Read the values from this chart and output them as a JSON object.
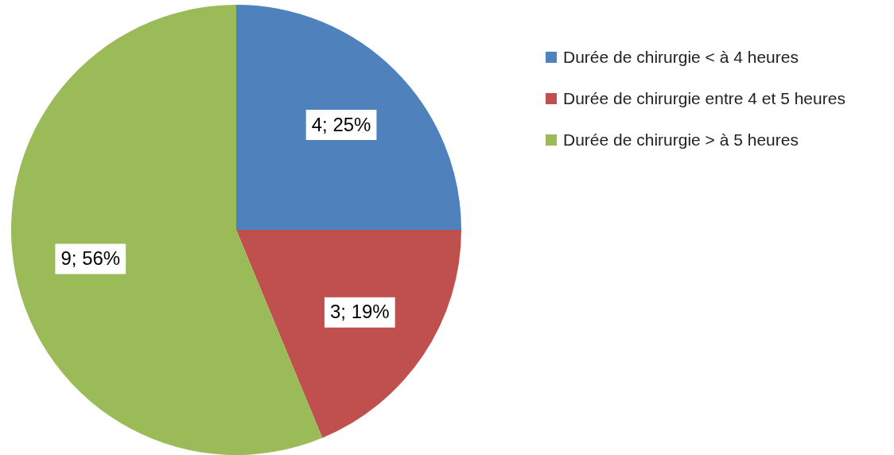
{
  "chart_data": {
    "type": "pie",
    "categories": [
      "Durée de chirurgie < à 4 heures",
      "Durée de chirurgie entre 4 et 5 heures",
      "Durée de chirurgie > à 5 heures"
    ],
    "values": [
      4,
      3,
      9
    ],
    "colors": [
      "#4f81bd",
      "#c0504d",
      "#9bbb59"
    ],
    "value_labels": [
      "4; 25%",
      "3; 19%",
      "9; 56%"
    ],
    "legend": "top right"
  }
}
